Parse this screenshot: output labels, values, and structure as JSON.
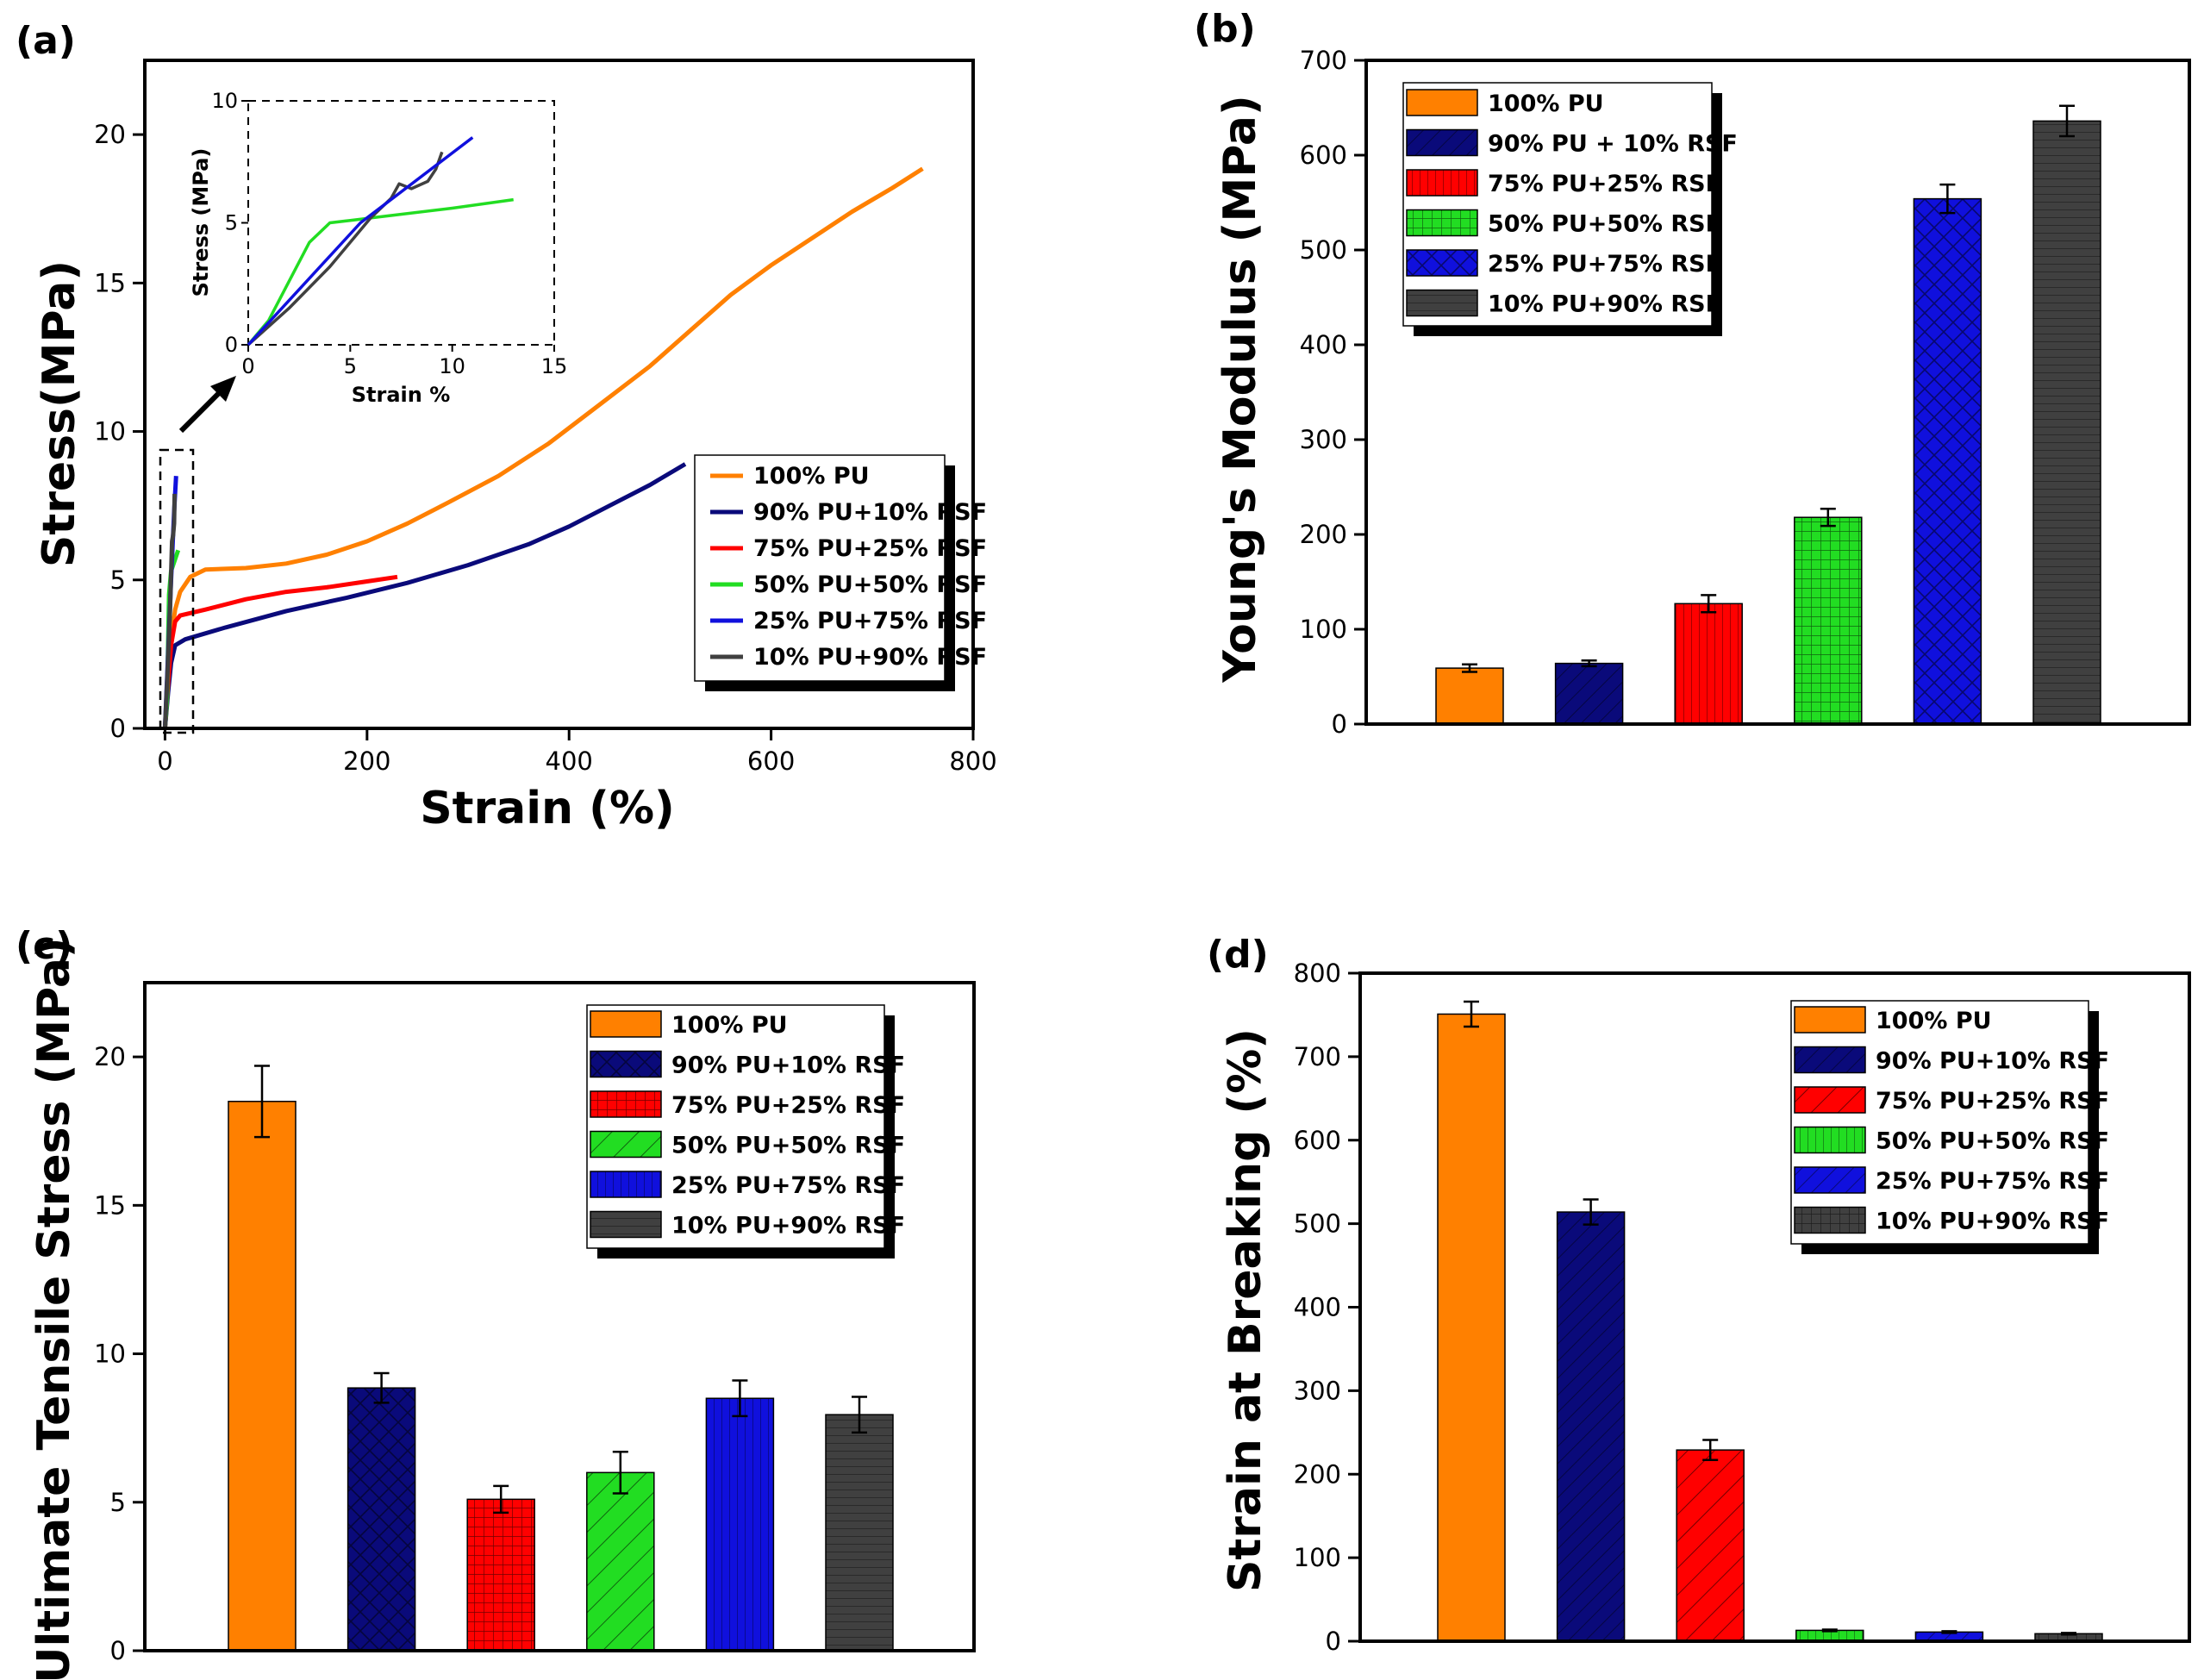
{
  "chart_data": [
    {
      "id": "a",
      "panel_label": "(a)",
      "type": "line",
      "xlabel": "Strain (%)",
      "ylabel": "Stress(MPa)",
      "xlim": [
        -20,
        800
      ],
      "ylim": [
        0,
        22.5
      ],
      "xticks": [
        0,
        200,
        400,
        600,
        800
      ],
      "yticks": [
        0,
        5,
        10,
        15,
        20
      ],
      "series": [
        {
          "name": "100% PU",
          "color": "#FF8000",
          "points": [
            [
              0,
              0
            ],
            [
              3,
              1.5
            ],
            [
              6,
              3.0
            ],
            [
              10,
              4.0
            ],
            [
              15,
              4.6
            ],
            [
              25,
              5.1
            ],
            [
              40,
              5.35
            ],
            [
              80,
              5.4
            ],
            [
              120,
              5.55
            ],
            [
              160,
              5.85
            ],
            [
              200,
              6.3
            ],
            [
              240,
              6.9
            ],
            [
              280,
              7.6
            ],
            [
              330,
              8.5
            ],
            [
              380,
              9.6
            ],
            [
              430,
              10.9
            ],
            [
              480,
              12.2
            ],
            [
              520,
              13.4
            ],
            [
              560,
              14.6
            ],
            [
              600,
              15.6
            ],
            [
              640,
              16.5
            ],
            [
              680,
              17.4
            ],
            [
              720,
              18.2
            ],
            [
              750,
              18.85
            ]
          ]
        },
        {
          "name": "90% PU+10% RSF",
          "color": "#0A0A7A",
          "points": [
            [
              0,
              0
            ],
            [
              3,
              1.2
            ],
            [
              6,
              2.2
            ],
            [
              10,
              2.8
            ],
            [
              20,
              3.0
            ],
            [
              60,
              3.4
            ],
            [
              120,
              3.95
            ],
            [
              180,
              4.4
            ],
            [
              240,
              4.9
            ],
            [
              300,
              5.5
            ],
            [
              360,
              6.2
            ],
            [
              400,
              6.8
            ],
            [
              440,
              7.5
            ],
            [
              480,
              8.2
            ],
            [
              515,
              8.9
            ]
          ]
        },
        {
          "name": "75% PU+25% RSF",
          "color": "#FF0000",
          "points": [
            [
              0,
              0
            ],
            [
              3,
              1.5
            ],
            [
              6,
              2.8
            ],
            [
              10,
              3.6
            ],
            [
              15,
              3.8
            ],
            [
              40,
              4.0
            ],
            [
              80,
              4.35
            ],
            [
              120,
              4.6
            ],
            [
              160,
              4.75
            ],
            [
              200,
              4.95
            ],
            [
              230,
              5.1
            ]
          ]
        },
        {
          "name": "50% PU+50% RSF",
          "color": "#22DD22",
          "points": [
            [
              0,
              0
            ],
            [
              2,
              1.0
            ],
            [
              4,
              4.5
            ],
            [
              6,
              5.3
            ],
            [
              13,
              6.0
            ]
          ]
        },
        {
          "name": "25% PU+75% RSF",
          "color": "#1010DD",
          "points": [
            [
              0,
              0
            ],
            [
              3,
              2.5
            ],
            [
              6,
              5.0
            ],
            [
              9,
              7.3
            ],
            [
              11,
              8.5
            ]
          ]
        },
        {
          "name": "10% PU+90% RSF",
          "color": "#404040",
          "points": [
            [
              0,
              0
            ],
            [
              3,
              2.3
            ],
            [
              5,
              4.0
            ],
            [
              7,
              6.3
            ],
            [
              8,
              6.5
            ],
            [
              9,
              6.9
            ],
            [
              9.5,
              7.9
            ]
          ]
        }
      ],
      "inset": {
        "xlabel": "Strain %",
        "ylabel": "Stress (MPa)",
        "xlim": [
          0,
          15
        ],
        "ylim": [
          0,
          10
        ],
        "xticks": [
          0,
          5,
          10,
          15
        ],
        "yticks": [
          0,
          5,
          10
        ],
        "series": [
          {
            "name": "50% PU+50% RSF",
            "color": "#22DD22",
            "points": [
              [
                0,
                0
              ],
              [
                1,
                1.0
              ],
              [
                2,
                2.6
              ],
              [
                3,
                4.2
              ],
              [
                4,
                5.0
              ],
              [
                5,
                5.1
              ],
              [
                7,
                5.3
              ],
              [
                10,
                5.6
              ],
              [
                13,
                5.95
              ]
            ]
          },
          {
            "name": "10% PU+90% RSF",
            "color": "#404040",
            "points": [
              [
                0,
                0
              ],
              [
                2,
                1.5
              ],
              [
                4,
                3.2
              ],
              [
                6,
                5.2
              ],
              [
                7,
                6.0
              ],
              [
                7.4,
                6.6
              ],
              [
                8,
                6.4
              ],
              [
                8.8,
                6.7
              ],
              [
                9.2,
                7.2
              ],
              [
                9.5,
                7.9
              ]
            ]
          },
          {
            "name": "25% PU+75% RSF",
            "color": "#1010DD",
            "points": [
              [
                0,
                0
              ],
              [
                5.5,
                5.0
              ],
              [
                11,
                8.5
              ]
            ]
          }
        ]
      }
    },
    {
      "id": "b",
      "panel_label": "(b)",
      "type": "bar",
      "ylabel": "Young's Modulus (MPa)",
      "ylim": [
        0,
        700
      ],
      "yticks": [
        0,
        100,
        200,
        300,
        400,
        500,
        600,
        700
      ],
      "categories": [
        "100% PU",
        "90% PU + 10% RSF",
        "75% PU+25% RSF",
        "50% PU+50% RSF",
        "25% PU+75% RSF",
        "10% PU+90% RSF"
      ],
      "values": [
        59,
        64,
        127,
        218,
        554,
        636
      ],
      "errors": [
        4,
        3,
        9,
        9,
        15,
        16
      ],
      "colors": [
        "#FF8000",
        "#0A0A7A",
        "#FF0000",
        "#22DD22",
        "#1010DD",
        "#404040"
      ],
      "patterns": [
        "none",
        "hatch",
        "vlines",
        "grid",
        "crosshatch",
        "hlines"
      ]
    },
    {
      "id": "c",
      "panel_label": "(c)",
      "type": "bar",
      "ylabel": "Ultimate Tensile Stress (MPa)",
      "ylim": [
        0,
        22.5
      ],
      "yticks": [
        0,
        5,
        10,
        15,
        20
      ],
      "categories": [
        "100% PU",
        "90% PU+10% RSF",
        "75% PU+25% RSF",
        "50% PU+50% RSF",
        "25% PU+75% RSF",
        "10% PU+90% RSF"
      ],
      "values": [
        18.5,
        8.85,
        5.1,
        6.0,
        8.5,
        7.95
      ],
      "errors": [
        1.2,
        0.5,
        0.45,
        0.7,
        0.6,
        0.6
      ],
      "colors": [
        "#FF8000",
        "#0A0A7A",
        "#FF0000",
        "#22DD22",
        "#1010DD",
        "#404040"
      ],
      "patterns": [
        "none",
        "crosshatch",
        "grid",
        "diag",
        "vlines",
        "hlines"
      ]
    },
    {
      "id": "d",
      "panel_label": "(d)",
      "type": "bar",
      "ylabel": "Strain at Breaking (%)",
      "ylim": [
        0,
        800
      ],
      "yticks": [
        0,
        100,
        200,
        300,
        400,
        500,
        600,
        700,
        800
      ],
      "categories": [
        "100% PU",
        "90% PU+10% RSF",
        "75% PU+25% RSF",
        "50% PU+50% RSF",
        "25% PU+75% RSF",
        "10% PU+90% RSF"
      ],
      "values": [
        751,
        514,
        229,
        13,
        11,
        9
      ],
      "errors": [
        15,
        15,
        12,
        1,
        1,
        1
      ],
      "colors": [
        "#FF8000",
        "#0A0A7A",
        "#FF0000",
        "#22DD22",
        "#1010DD",
        "#404040"
      ],
      "patterns": [
        "none",
        "hatch",
        "diag",
        "vlines",
        "hatch",
        "grid"
      ]
    }
  ]
}
